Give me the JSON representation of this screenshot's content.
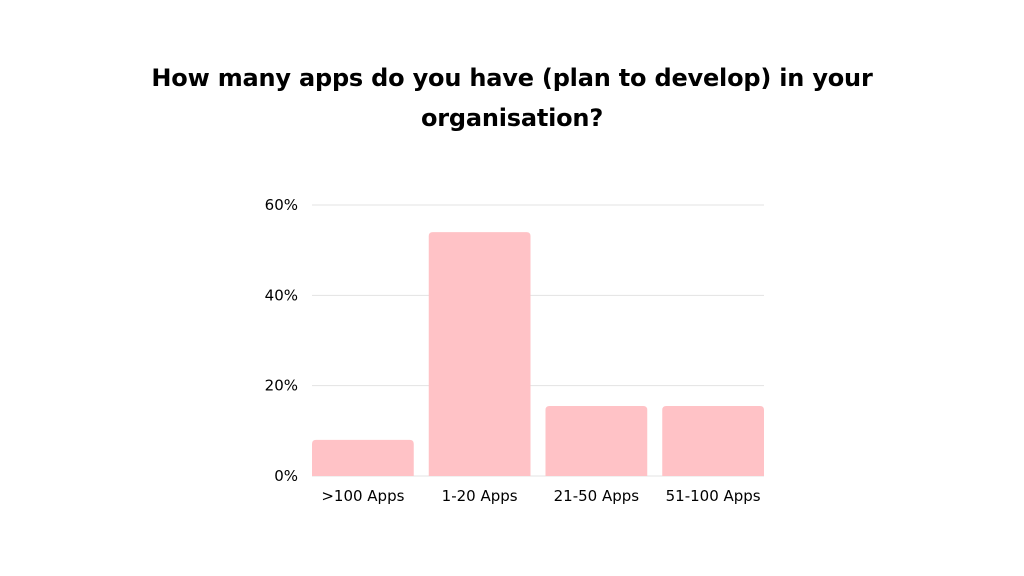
{
  "chart_data": {
    "type": "bar",
    "title": "How many apps do you have (plan to develop) in your organisation?",
    "categories": [
      ">100 Apps",
      "1-20 Apps",
      "21-50 Apps",
      "51-100 Apps"
    ],
    "values": [
      8,
      54,
      15.5,
      15.5
    ],
    "xlabel": "",
    "ylabel": "",
    "ylim": [
      0,
      60
    ],
    "yticks": [
      0,
      20,
      40,
      60
    ],
    "ytick_labels": [
      "0%",
      "20%",
      "40%",
      "60%"
    ],
    "grid": true,
    "legend": "none",
    "colors": {
      "bar": "#ffc2c6",
      "grid": "#e3e3e3",
      "text": "#000000"
    }
  }
}
